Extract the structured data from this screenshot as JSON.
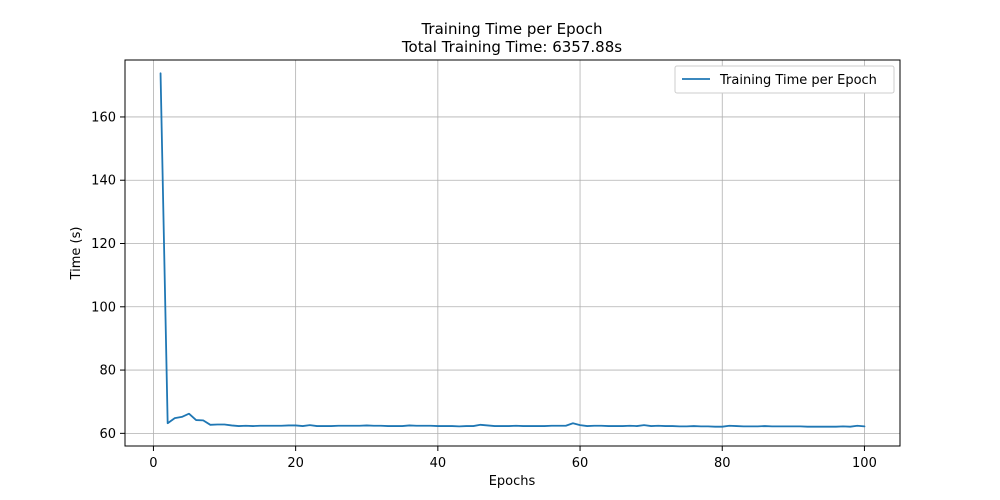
{
  "chart_data": {
    "type": "line",
    "title": "Training Time per Epoch",
    "subtitle": "Total Training Time: 6357.88s",
    "xlabel": "Epochs",
    "ylabel": "Time (s)",
    "xlim": [
      -4,
      105
    ],
    "ylim": [
      56,
      178
    ],
    "xticks": [
      0,
      20,
      40,
      60,
      80,
      100
    ],
    "yticks": [
      60,
      80,
      100,
      120,
      140,
      160
    ],
    "grid": true,
    "legend_position": "top-right",
    "series": [
      {
        "name": "Training Time per Epoch",
        "color": "#1f77b4",
        "x": [
          1,
          2,
          3,
          4,
          5,
          6,
          7,
          8,
          9,
          10,
          11,
          12,
          13,
          14,
          15,
          16,
          17,
          18,
          19,
          20,
          21,
          22,
          23,
          24,
          25,
          26,
          27,
          28,
          29,
          30,
          31,
          32,
          33,
          34,
          35,
          36,
          37,
          38,
          39,
          40,
          41,
          42,
          43,
          44,
          45,
          46,
          47,
          48,
          49,
          50,
          51,
          52,
          53,
          54,
          55,
          56,
          57,
          58,
          59,
          60,
          61,
          62,
          63,
          64,
          65,
          66,
          67,
          68,
          69,
          70,
          71,
          72,
          73,
          74,
          75,
          76,
          77,
          78,
          79,
          80,
          81,
          82,
          83,
          84,
          85,
          86,
          87,
          88,
          89,
          90,
          91,
          92,
          93,
          94,
          95,
          96,
          97,
          98,
          99,
          100
        ],
        "values": [
          173.8,
          63.2,
          64.8,
          65.2,
          66.2,
          64.2,
          64.1,
          62.7,
          62.8,
          62.8,
          62.5,
          62.3,
          62.4,
          62.3,
          62.4,
          62.4,
          62.4,
          62.4,
          62.5,
          62.5,
          62.3,
          62.6,
          62.3,
          62.3,
          62.3,
          62.4,
          62.4,
          62.4,
          62.4,
          62.5,
          62.4,
          62.4,
          62.3,
          62.3,
          62.3,
          62.5,
          62.4,
          62.4,
          62.4,
          62.3,
          62.3,
          62.3,
          62.2,
          62.3,
          62.3,
          62.7,
          62.5,
          62.3,
          62.3,
          62.3,
          62.4,
          62.3,
          62.3,
          62.3,
          62.3,
          62.4,
          62.4,
          62.4,
          63.2,
          62.6,
          62.3,
          62.4,
          62.4,
          62.3,
          62.3,
          62.3,
          62.4,
          62.3,
          62.6,
          62.3,
          62.4,
          62.3,
          62.3,
          62.2,
          62.2,
          62.3,
          62.2,
          62.2,
          62.1,
          62.1,
          62.4,
          62.3,
          62.2,
          62.2,
          62.2,
          62.3,
          62.2,
          62.2,
          62.2,
          62.2,
          62.2,
          62.1,
          62.1,
          62.1,
          62.1,
          62.1,
          62.2,
          62.1,
          62.4,
          62.2
        ]
      }
    ]
  }
}
